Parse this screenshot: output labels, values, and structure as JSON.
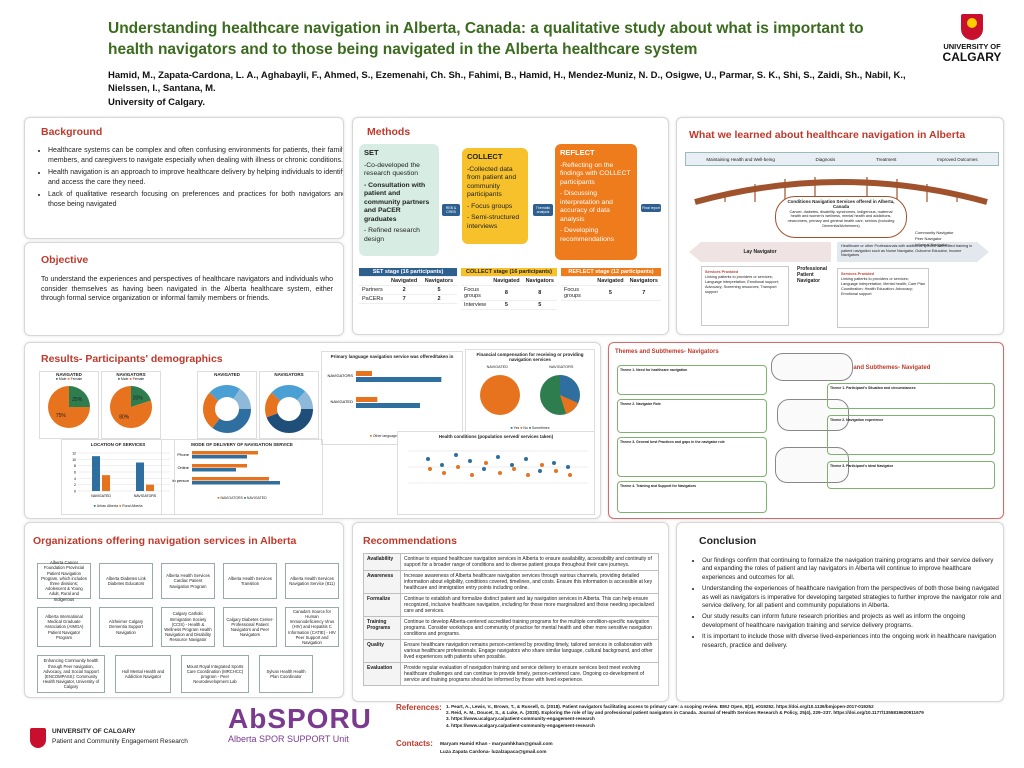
{
  "header": {
    "title": "Understanding healthcare navigation in Alberta, Canada: a qualitative study about what is important to health navigators and to those being navigated in the Alberta healthcare system",
    "authors": "Hamid, M., Zapata-Cardona, L. A., Aghabayli, F., Ahmed, S., Ezemenahi, Ch. Sh., Fahimi, B., Hamid, H., Mendez-Muniz, N. D., Osigwe, U., Parmar, S. K., Shi, S., Zaidi, Sh., Nabil, K., Nielssen, I., Santana, M.",
    "affiliation": "University of Calgary.",
    "logo_line1": "UNIVERSITY OF",
    "logo_line2": "CALGARY"
  },
  "background": {
    "title": "Background",
    "bullets": [
      "Healthcare systems can be complex and often confusing environments for patients, their family members, and caregivers to navigate especially when dealing with illness or chronic conditions.",
      "Health navigation is an approach to improve healthcare delivery by helping individuals to identify and access the care they need.",
      "Lack of qualitative research focusing on preferences and practices for both navigators and those being navigated"
    ]
  },
  "objective": {
    "title": "Objective",
    "text": "To understand the experiences and perspectives of healthcare navigators and individuals who consider themselves as having been navigated in the Alberta healthcare system, either through formal service organization or informal family members or friends."
  },
  "methods": {
    "title": "Methods",
    "set_title": "SET",
    "set_items": [
      "-Co-developed the research question",
      "- Consultation with patient and community partners and PaCER graduates",
      "- Refined research design"
    ],
    "collect_title": "COLLECT",
    "collect_items": [
      "-Collected data from patient and community participants",
      "- Focus groups",
      "- Semi-structured interviews"
    ],
    "reflect_title": "REFLECT",
    "reflect_items": [
      "-Reflecting on the findings with COLLECT participants",
      "- Discussing interpretation and accuracy of data analysis",
      "- Developing recommendations"
    ],
    "arrow1": "REB & CREB",
    "arrow2": "Thematic analysis",
    "arrow3": "Final report",
    "set_table_title": "SET stage (16 participants)",
    "collect_table_title": "COLLECT stage (16 participants)",
    "reflect_table_title": "REFLECT stage (12 participants)",
    "col_navigated": "Navigated",
    "col_navigators": "Navigators",
    "set_rows": [
      [
        "Partners",
        "2",
        "5"
      ],
      [
        "PaCERs",
        "7",
        "2"
      ]
    ],
    "collect_rows": [
      [
        "Focus groups",
        "8",
        "8"
      ],
      [
        "Interview",
        "5",
        "5"
      ]
    ],
    "reflect_rows": [
      [
        "Focus groups",
        "5",
        "7"
      ]
    ]
  },
  "learned": {
    "title": "What we learned about healthcare navigation in Alberta",
    "stages": [
      "Maintaining Health and Well-being",
      "Diagnosis",
      "Treatment",
      "Improved Outcomes"
    ],
    "bridge_title": "Conditions Navigation Services offered in Alberta, Canada",
    "bridge_text": "Cancer, diabetes, disability, syndromes, indigenous, maternal health and women's wellness, mental health and addictions, newcomers, primary and general health care, seniors (including Dementia/Alzheimers)",
    "lay_title": "Lay Navigator",
    "lay_services_title": "Services Provided",
    "lay_services": "Linking patients to providers or services; Language interpretation; Emotional support; Advocacy; Screening resources; Transport support",
    "prof_title": "Professional Patient Navigator",
    "prof_desc": "Healthcare or other Professionals with additional specific accredited training in patient navigation such as Nurse Navigator, Outcome Educator, Income Navigators",
    "prof_services_title": "Services Provided",
    "prof_services": "Linking patients to providers or services; Language interpretation; Mental health; Care Plan Coordination; Health Education; Advocacy; Emotional support",
    "right_list": [
      "Community Navigator",
      "Peer Navigator",
      "Informal Navigator"
    ]
  },
  "demographics": {
    "title": "Results- Participants' demographics",
    "pie1_title": "NAVIGATED",
    "pie2_title": "NAVIGATORS",
    "pie_legend": [
      "Male",
      "Female"
    ],
    "pie1_values": [
      25,
      75
    ],
    "pie2_values": [
      20,
      80
    ],
    "pie1_labels": [
      "25%",
      "75%"
    ],
    "pie2_labels": [
      "20%",
      "80%"
    ],
    "age_title_a": "NAVIGATED",
    "age_title_b": "NAVIGATORS",
    "location_title": "LOCATION OF SERVICES",
    "location_cats": [
      "NAVIGATED",
      "NAVIGATORS"
    ],
    "location_legend": [
      "Urban Alberta",
      "Rural Alberta"
    ],
    "location_urban": [
      11,
      9
    ],
    "location_rural": [
      5,
      2
    ],
    "location_ticks": [
      "0",
      "2",
      "4",
      "6",
      "8",
      "10",
      "12"
    ],
    "mode_title": "MODE OF DELIVERY OF NAVIGATION SERVICE",
    "mode_cats": [
      "Phone",
      "Online",
      "In person"
    ],
    "mode_legend": [
      "NAVIGATORS",
      "NAVIGATED"
    ],
    "language_title": "Primary language navigation service was offered/taken in",
    "language_cats": [
      "NAVIGATORS",
      "NAVIGATED"
    ],
    "language_legend": [
      "Other languages",
      "English"
    ],
    "financial_title": "Financial compensation for receiving or providing navigation services",
    "financial_sub_a": "NAVIGATED",
    "financial_sub_b": "NAVIGATORS",
    "financial_legend": [
      "Yes",
      "No",
      "Sometimes"
    ],
    "scatter_title": "Health conditions (population served/ services taken)"
  },
  "themes": {
    "left_title": "Themes and Subthemes- Navigators",
    "right_title": "Themes and Subthemes- Navigated",
    "left_themes": [
      "Theme 1. Need for healthcare navigation",
      "Theme 2. Navigator Role",
      "Theme 3. General best Practices and gaps in the navigator role",
      "Theme 4. Training and Support for Navigators"
    ],
    "right_themes": [
      "Theme 1. Participant's Situation and circumstances",
      "Theme 2. Navigation experience",
      "Theme 3. Participant's Ideal Navigator"
    ]
  },
  "orgs": {
    "title": "Organizations offering navigation services in Alberta",
    "items": [
      "Alberta Cancer Foundation Provincial Patient Navigation Program, which includes three divisions; Adolescent & Young Adult, Rural and Indigenous",
      "Alberta Diabetes Link Diabetes Educators",
      "Alberta Health Services Cardiac Patient Navigation Program",
      "Alberta Health Services Transition",
      "Alberta Health Services Navigation Service (811)",
      "Alberta International Medical Graduate Association (AIMGA) Patient Navigator Program",
      "Alzheimer Calgary Dementia Support Navigation",
      "Calgary Catholic Immigration Society (CCIS) - Health & Wellness Program Health Navigation and Disability Resource Navigator",
      "Calgary Diabetes Center- Professional Patient Navigators and Peer Navigators",
      "Canada's Source for Human Immunodeficiency Virus (HIV) and Hepatitis C Information (CATIE) - HIV Peer Support and Navigation",
      "Enhancing Community health through Peer navigation, Advocacy, and Social Support (ENCOMPASS): Community Health Navigator, University of Calgary",
      "Hull Mental Health and Addiction Navigator",
      "Mount Royal Integrated Sports Care Coordination (MRCHCC) program - Peer Neurodevelopment Lab",
      "Sylvan Health Health Plan Coordinator"
    ],
    "dept_line1": "UNIVERSITY OF CALGARY",
    "dept_line2": "Patient and Community Engagement Research",
    "absporu_text": "AbSPORU",
    "absporu_sub": "Alberta SPOR SUPPORT Unit"
  },
  "recommendations": {
    "title": "Recommendations",
    "rows": [
      [
        "Availability",
        "Continue to expand healthcare navigation services in Alberta to ensure availability, accessibility and continuity of support for a broader range of conditions and to diverse patient groups throughout their care journeys."
      ],
      [
        "Awareness",
        "Increase awareness of Alberta healthcare navigation services through various channels, providing detailed information about eligibility, conditions covered, timelines, and costs. Ensure this information is accessible at key healthcare and immigration entry points including online."
      ],
      [
        "Formalize",
        "Continue to establish and formalize distinct patient and lay navigation services in Alberta. This can help ensure recognized, inclusive healthcare navigation, including for those more marginalized and those needing specialized care and services."
      ],
      [
        "Training Programs",
        "Continue to develop Alberta-centered accredited training programs for the multiple condition-specific navigation programs. Consider workshops and community of practice for mental health and other more sensitive navigation conditions and programs."
      ],
      [
        "Quality",
        "Ensure healthcare navigation remains person-centered by providing timely, tailored services in collaboration with various healthcare professionals. Engage navigators who share similar language, cultural background, and other lived experiences with patients when possible."
      ],
      [
        "Evaluation",
        "Provide regular evaluation of navigation training and service delivery to ensure services best meet evolving healthcare challenges and can continue to provide timely, person-centered care. Ongoing co-development of service and training programs should be informed by those with lived experience."
      ]
    ]
  },
  "conclusion": {
    "title": "Conclusion",
    "bullets": [
      "Our findings confirm that continuing to formalize the navigation training programs and their service delivery and expanding the roles of patient and lay navigators in Alberta will continue to improve healthcare experiences and outcomes for all.",
      "Understanding the experiences of healthcare navigation from the perspectives of both those being navigated as well as navigators is imperative for developing targeted strategies to further improve the navigator role and service delivery, for all patient and community populations in Alberta.",
      "Our study results can inform future research priorities and projects as well as inform the ongoing development of healthcare navigation training and service delivery programs.",
      "It is important to include those with diverse lived-experiences into the ongoing work in healthcare navigation research, practice and delivery."
    ]
  },
  "references": {
    "label": "References:",
    "items": [
      "1. Peart, A., Lewis, V., Brown, T., & Russell, G. (2018). Patient navigators facilitating access to primary care: a scoping review. BMJ Open, 8(3), e019252. https://doi.org/10.1136/bmjopen-2017-019252",
      "2. Reid, A. M., Doucet, S., & Luke, A. (2020). Exploring the role of lay and professional patient navigators in Canada. Journal of Health Services Research & Policy, 25(4), 229–237. https://doi.org/10.1177/1355819620911679",
      "3. https://www.ucalgary.ca/patient-community-engagement-research",
      "4. https://www.ucalgary.ca/patient-community-engagement-research"
    ]
  },
  "contacts": {
    "label": "Contacts:",
    "line1": "Maryam Hamid Khan - maryamhkhan@gmail.com",
    "line2": "Luza Zapata Cardona- luzalzapaca@gmail.com"
  },
  "chart_data": [
    {
      "type": "pie",
      "title": "NAVIGATED",
      "categories": [
        "Male",
        "Female"
      ],
      "values": [
        25,
        75
      ]
    },
    {
      "type": "pie",
      "title": "NAVIGATORS",
      "categories": [
        "Male",
        "Female"
      ],
      "values": [
        20,
        80
      ]
    },
    {
      "type": "bar",
      "title": "LOCATION OF SERVICES",
      "categories": [
        "NAVIGATED",
        "NAVIGATORS"
      ],
      "series": [
        {
          "name": "Urban Alberta",
          "values": [
            11,
            9
          ]
        },
        {
          "name": "Rural Alberta",
          "values": [
            5,
            2
          ]
        }
      ],
      "ylim": [
        0,
        12
      ]
    },
    {
      "type": "bar",
      "title": "MODE OF DELIVERY OF NAVIGATION SERVICE",
      "categories": [
        "Phone",
        "Online",
        "In person"
      ],
      "series": [
        {
          "name": "NAVIGATORS",
          "values": [
            6,
            5,
            7
          ]
        },
        {
          "name": "NAVIGATED",
          "values": [
            5,
            4,
            8
          ]
        }
      ]
    },
    {
      "type": "bar",
      "title": "Primary language navigation service was offered/taken in",
      "categories": [
        "NAVIGATORS",
        "NAVIGATED"
      ],
      "series": [
        {
          "name": "Other languages",
          "values": [
            3,
            4
          ]
        },
        {
          "name": "English",
          "values": [
            16,
            12
          ]
        }
      ]
    }
  ],
  "colors": {
    "title_green": "#3b6b1f",
    "section_red": "#c0392b",
    "teal_box": "#d7ede3",
    "yellow_box": "#f6c12b",
    "orange_box": "#ee7b1c",
    "blue": "#2f6f9f",
    "orange": "#e8731f"
  }
}
